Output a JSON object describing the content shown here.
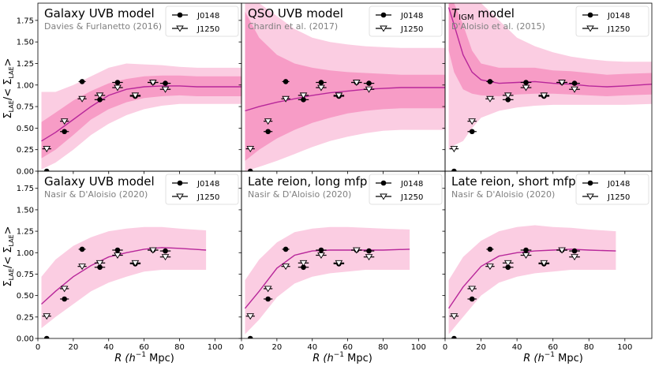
{
  "figure": {
    "xlabel_main": "R (h",
    "xlabel_sup": "−1",
    "xlabel_tail": " Mpc)",
    "ylabel_main": "Σ",
    "ylabel_sub1": "LAE",
    "ylabel_mid": "/< Σ",
    "ylabel_sub2": "LAE",
    "ylabel_tail": ">"
  },
  "colors": {
    "band_outer": "#fbcde2",
    "band_inner": "#f79cc6",
    "model_line": "#b8279a",
    "marker": "#000000"
  },
  "chart_data": [
    {
      "type": "line",
      "title": "Galaxy UVB model",
      "subtitle": "Davies & Furlanetto (2016)",
      "xlim": [
        0,
        115
      ],
      "ylim": [
        0,
        1.95
      ],
      "xticks": [
        0,
        20,
        40,
        60,
        80,
        100
      ],
      "yticks": [
        0.0,
        0.25,
        0.5,
        0.75,
        1.0,
        1.25,
        1.5,
        1.75
      ],
      "legend": [
        "J0148",
        "J1250"
      ],
      "legend_position": "top-right",
      "model": {
        "x": [
          2,
          10,
          20,
          30,
          40,
          50,
          60,
          70,
          80,
          90,
          100,
          115
        ],
        "y": [
          0.35,
          0.45,
          0.6,
          0.75,
          0.88,
          0.95,
          0.98,
          0.99,
          0.99,
          0.98,
          0.98,
          0.98
        ],
        "inner_lo": [
          0.15,
          0.25,
          0.42,
          0.6,
          0.72,
          0.8,
          0.85,
          0.87,
          0.88,
          0.87,
          0.87,
          0.87
        ],
        "inner_hi": [
          0.57,
          0.68,
          0.82,
          0.93,
          1.02,
          1.07,
          1.1,
          1.11,
          1.11,
          1.1,
          1.1,
          1.1
        ],
        "outer_lo": [
          0.02,
          0.1,
          0.25,
          0.42,
          0.55,
          0.65,
          0.72,
          0.76,
          0.78,
          0.78,
          0.78,
          0.78
        ],
        "outer_hi": [
          0.92,
          0.92,
          1.0,
          1.1,
          1.2,
          1.25,
          1.24,
          1.23,
          1.21,
          1.2,
          1.2,
          1.2
        ]
      },
      "series": [
        {
          "name": "J0148",
          "x": [
            5,
            15,
            25,
            35,
            45,
            55,
            65,
            72
          ],
          "y": [
            0.0,
            0.46,
            1.04,
            0.83,
            1.03,
            0.87,
            1.03,
            1.02
          ],
          "xerr": [
            0,
            2.5,
            2,
            3,
            3,
            3,
            3,
            3
          ]
        },
        {
          "name": "J1250",
          "x": [
            5,
            15,
            25,
            35,
            45,
            55,
            65,
            72
          ],
          "y": [
            0.26,
            0.58,
            0.84,
            0.88,
            0.97,
            0.88,
            1.03,
            0.95
          ],
          "xerr": [
            2.5,
            2.5,
            2.5,
            3,
            3,
            3,
            3,
            3
          ]
        }
      ]
    },
    {
      "type": "line",
      "title": "QSO UVB model",
      "subtitle": "Chardin et al. (2017)",
      "xlim": [
        0,
        115
      ],
      "ylim": [
        0,
        1.95
      ],
      "xticks": [
        0,
        20,
        40,
        60,
        80,
        100
      ],
      "yticks": [
        0.0,
        0.25,
        0.5,
        0.75,
        1.0,
        1.25,
        1.5,
        1.75
      ],
      "legend": [
        "J0148",
        "J1250"
      ],
      "legend_position": "top-right",
      "model": {
        "x": [
          2,
          10,
          20,
          30,
          40,
          50,
          60,
          70,
          80,
          90,
          100,
          115
        ],
        "y": [
          0.7,
          0.75,
          0.8,
          0.84,
          0.88,
          0.91,
          0.93,
          0.95,
          0.96,
          0.97,
          0.97,
          0.97
        ],
        "inner_lo": [
          0.12,
          0.25,
          0.38,
          0.48,
          0.56,
          0.62,
          0.67,
          0.7,
          0.72,
          0.73,
          0.73,
          0.73
        ],
        "inner_hi": [
          1.85,
          1.55,
          1.35,
          1.25,
          1.2,
          1.17,
          1.15,
          1.14,
          1.13,
          1.12,
          1.12,
          1.12
        ],
        "outer_lo": [
          0.0,
          0.05,
          0.12,
          0.2,
          0.28,
          0.35,
          0.4,
          0.44,
          0.47,
          0.48,
          0.48,
          0.48
        ],
        "outer_hi": [
          1.95,
          1.95,
          1.8,
          1.65,
          1.55,
          1.5,
          1.47,
          1.45,
          1.44,
          1.43,
          1.43,
          1.43
        ]
      },
      "series": [
        {
          "name": "J0148",
          "x": [
            5,
            15,
            25,
            35,
            45,
            55,
            65,
            72
          ],
          "y": [
            0.0,
            0.46,
            1.04,
            0.83,
            1.03,
            0.87,
            1.03,
            1.02
          ],
          "xerr": [
            0,
            2.5,
            2,
            3,
            3,
            3,
            3,
            3
          ]
        },
        {
          "name": "J1250",
          "x": [
            5,
            15,
            25,
            35,
            45,
            55,
            65,
            72
          ],
          "y": [
            0.26,
            0.58,
            0.84,
            0.88,
            0.97,
            0.88,
            1.03,
            0.95
          ],
          "xerr": [
            2.5,
            2.5,
            2.5,
            3,
            3,
            3,
            3,
            3
          ]
        }
      ]
    },
    {
      "type": "line",
      "title_main": "T",
      "title_sub": "IGM",
      "title_tail": " model",
      "subtitle": "D'Aloisio et al. (2015)",
      "xlim": [
        0,
        115
      ],
      "ylim": [
        0,
        1.95
      ],
      "xticks": [
        0,
        20,
        40,
        60,
        80,
        100
      ],
      "yticks": [
        0.0,
        0.25,
        0.5,
        0.75,
        1.0,
        1.25,
        1.5,
        1.75
      ],
      "legend": [
        "J0148",
        "J1250"
      ],
      "legend_position": "top-right",
      "model": {
        "x": [
          2,
          5,
          10,
          15,
          20,
          30,
          40,
          50,
          60,
          70,
          80,
          90,
          100,
          115
        ],
        "y": [
          1.9,
          1.7,
          1.35,
          1.15,
          1.06,
          1.02,
          1.03,
          1.04,
          1.02,
          1.01,
          0.99,
          0.98,
          0.99,
          1.01
        ],
        "inner_lo": [
          1.4,
          1.15,
          0.95,
          0.9,
          0.88,
          0.87,
          0.89,
          0.9,
          0.9,
          0.89,
          0.88,
          0.87,
          0.88,
          0.89
        ],
        "inner_hi": [
          1.95,
          1.95,
          1.7,
          1.4,
          1.25,
          1.2,
          1.2,
          1.2,
          1.17,
          1.16,
          1.14,
          1.12,
          1.13,
          1.14
        ],
        "outer_lo": [
          0.25,
          0.3,
          0.35,
          0.5,
          0.62,
          0.7,
          0.74,
          0.76,
          0.77,
          0.77,
          0.77,
          0.77,
          0.77,
          0.78
        ],
        "outer_hi": [
          1.95,
          1.95,
          1.95,
          1.95,
          1.95,
          1.75,
          1.55,
          1.45,
          1.38,
          1.33,
          1.3,
          1.28,
          1.27,
          1.27
        ]
      },
      "series": [
        {
          "name": "J0148",
          "x": [
            5,
            15,
            25,
            35,
            45,
            55,
            65,
            72
          ],
          "y": [
            0.0,
            0.46,
            1.04,
            0.83,
            1.03,
            0.87,
            1.03,
            1.02
          ],
          "xerr": [
            0,
            2.5,
            2,
            3,
            3,
            3,
            3,
            3
          ]
        },
        {
          "name": "J1250",
          "x": [
            5,
            15,
            25,
            35,
            45,
            55,
            65,
            72
          ],
          "y": [
            0.26,
            0.58,
            0.84,
            0.88,
            0.97,
            0.88,
            1.03,
            0.95
          ],
          "xerr": [
            2.5,
            2.5,
            2.5,
            3,
            3,
            3,
            3,
            3
          ]
        }
      ]
    },
    {
      "type": "line",
      "title": "Galaxy UVB model",
      "subtitle": "Nasir & D'Aloisio (2020)",
      "xlim": [
        0,
        115
      ],
      "ylim": [
        0,
        1.95
      ],
      "xticks": [
        0,
        20,
        40,
        60,
        80,
        100
      ],
      "yticks": [
        0.0,
        0.25,
        0.5,
        0.75,
        1.0,
        1.25,
        1.5,
        1.75
      ],
      "legend": [
        "J0148",
        "J1250"
      ],
      "legend_position": "top-right",
      "model": {
        "x": [
          2,
          10,
          20,
          30,
          40,
          50,
          60,
          70,
          80,
          95
        ],
        "y": [
          0.4,
          0.55,
          0.72,
          0.85,
          0.95,
          1.0,
          1.04,
          1.06,
          1.05,
          1.03
        ],
        "inner_lo": [
          0.4,
          0.55,
          0.72,
          0.85,
          0.95,
          1.0,
          1.04,
          1.06,
          1.05,
          1.03
        ],
        "inner_hi": [
          0.4,
          0.55,
          0.72,
          0.85,
          0.95,
          1.0,
          1.04,
          1.06,
          1.05,
          1.03
        ],
        "outer_lo": [
          0.12,
          0.25,
          0.4,
          0.55,
          0.65,
          0.72,
          0.78,
          0.8,
          0.8,
          0.8
        ],
        "outer_hi": [
          0.72,
          0.92,
          1.08,
          1.18,
          1.25,
          1.28,
          1.3,
          1.3,
          1.28,
          1.26
        ]
      },
      "series": [
        {
          "name": "J0148",
          "x": [
            5,
            15,
            25,
            35,
            45,
            55,
            65,
            72
          ],
          "y": [
            0.0,
            0.46,
            1.04,
            0.83,
            1.03,
            0.87,
            1.03,
            1.02
          ],
          "xerr": [
            0,
            2.5,
            2,
            3,
            3,
            3,
            3,
            3
          ]
        },
        {
          "name": "J1250",
          "x": [
            5,
            15,
            25,
            35,
            45,
            55,
            65,
            72
          ],
          "y": [
            0.26,
            0.58,
            0.84,
            0.88,
            0.97,
            0.88,
            1.03,
            0.95
          ],
          "xerr": [
            2.5,
            2.5,
            2.5,
            3,
            3,
            3,
            3,
            3
          ]
        }
      ]
    },
    {
      "type": "line",
      "title": "Late reion, long mfp",
      "subtitle": "Nasir & D'Aloisio (2020)",
      "xlim": [
        0,
        115
      ],
      "ylim": [
        0,
        1.95
      ],
      "xticks": [
        0,
        20,
        40,
        60,
        80,
        100
      ],
      "yticks": [
        0.0,
        0.25,
        0.5,
        0.75,
        1.0,
        1.25,
        1.5,
        1.75
      ],
      "legend": [
        "J0148",
        "J1250"
      ],
      "legend_position": "top-right",
      "model": {
        "x": [
          2,
          10,
          20,
          30,
          40,
          50,
          60,
          70,
          80,
          95
        ],
        "y": [
          0.35,
          0.55,
          0.82,
          0.97,
          1.02,
          1.03,
          1.03,
          1.03,
          1.03,
          1.04
        ],
        "inner_lo": [
          0.35,
          0.55,
          0.82,
          0.97,
          1.02,
          1.03,
          1.03,
          1.03,
          1.03,
          1.04
        ],
        "inner_hi": [
          0.35,
          0.55,
          0.82,
          0.97,
          1.02,
          1.03,
          1.03,
          1.03,
          1.03,
          1.04
        ],
        "outer_lo": [
          0.05,
          0.22,
          0.48,
          0.64,
          0.72,
          0.76,
          0.78,
          0.8,
          0.8,
          0.8
        ],
        "outer_hi": [
          0.68,
          0.92,
          1.12,
          1.24,
          1.28,
          1.3,
          1.3,
          1.29,
          1.28,
          1.27
        ]
      },
      "series": [
        {
          "name": "J0148",
          "x": [
            5,
            15,
            25,
            35,
            45,
            55,
            65,
            72
          ],
          "y": [
            0.0,
            0.46,
            1.04,
            0.83,
            1.03,
            0.87,
            1.03,
            1.02
          ],
          "xerr": [
            0,
            2.5,
            2,
            3,
            3,
            3,
            3,
            3
          ]
        },
        {
          "name": "J1250",
          "x": [
            5,
            15,
            25,
            35,
            45,
            55,
            65,
            72
          ],
          "y": [
            0.26,
            0.58,
            0.84,
            0.88,
            0.97,
            0.88,
            1.03,
            0.95
          ],
          "xerr": [
            2.5,
            2.5,
            2.5,
            3,
            3,
            3,
            3,
            3
          ]
        }
      ]
    },
    {
      "type": "line",
      "title": "Late reion, short mfp",
      "subtitle": "Nasir & D'Aloisio (2020)",
      "xlim": [
        0,
        115
      ],
      "ylim": [
        0,
        1.95
      ],
      "xticks": [
        0,
        20,
        40,
        60,
        80,
        100
      ],
      "yticks": [
        0.0,
        0.25,
        0.5,
        0.75,
        1.0,
        1.25,
        1.5,
        1.75
      ],
      "legend": [
        "J0148",
        "J1250"
      ],
      "legend_position": "top-right",
      "model": {
        "x": [
          2,
          10,
          20,
          30,
          40,
          50,
          60,
          70,
          80,
          95
        ],
        "y": [
          0.35,
          0.6,
          0.84,
          0.96,
          1.0,
          1.02,
          1.03,
          1.04,
          1.03,
          1.02
        ],
        "inner_lo": [
          0.35,
          0.6,
          0.84,
          0.96,
          1.0,
          1.02,
          1.03,
          1.04,
          1.03,
          1.02
        ],
        "inner_hi": [
          0.35,
          0.6,
          0.84,
          0.96,
          1.0,
          1.02,
          1.03,
          1.04,
          1.03,
          1.02
        ],
        "outer_lo": [
          0.05,
          0.25,
          0.5,
          0.65,
          0.72,
          0.76,
          0.78,
          0.8,
          0.8,
          0.8
        ],
        "outer_hi": [
          0.68,
          0.95,
          1.14,
          1.25,
          1.3,
          1.32,
          1.3,
          1.29,
          1.27,
          1.25
        ]
      },
      "series": [
        {
          "name": "J0148",
          "x": [
            5,
            15,
            25,
            35,
            45,
            55,
            65,
            72
          ],
          "y": [
            0.0,
            0.46,
            1.04,
            0.83,
            1.03,
            0.87,
            1.03,
            1.02
          ],
          "xerr": [
            0,
            2.5,
            2,
            3,
            3,
            3,
            3,
            3
          ]
        },
        {
          "name": "J1250",
          "x": [
            5,
            15,
            25,
            35,
            45,
            55,
            65,
            72
          ],
          "y": [
            0.26,
            0.58,
            0.84,
            0.88,
            0.97,
            0.88,
            1.03,
            0.95
          ],
          "xerr": [
            2.5,
            2.5,
            2.5,
            3,
            3,
            3,
            3,
            3
          ]
        }
      ]
    }
  ]
}
